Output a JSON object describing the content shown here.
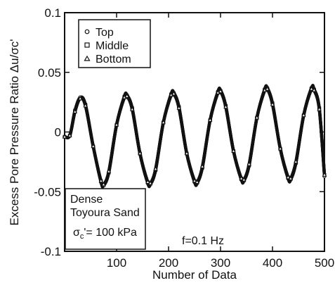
{
  "chart_data": {
    "type": "scatter",
    "xlabel": "Number of Data",
    "ylabel": "Excess Pore Pressure Ratio Δu/σc'",
    "xlim": [
      0,
      500
    ],
    "ylim": [
      -0.1,
      0.1
    ],
    "xticks": [
      100,
      200,
      300,
      400,
      500
    ],
    "xtick_labels": [
      "100",
      "200",
      "300",
      "400",
      "500"
    ],
    "yticks": [
      -0.1,
      -0.05,
      0,
      0.05,
      0.1
    ],
    "ytick_labels": [
      "-0.1",
      "-0.05",
      "0",
      "0.05",
      "0.1"
    ],
    "grid": false,
    "legend_placement": "top-left",
    "series": [
      {
        "name": "Top",
        "marker": "circle",
        "x": [
          0,
          10,
          20,
          30,
          40,
          55,
          70,
          75,
          85,
          100,
          115,
          120,
          130,
          145,
          160,
          165,
          175,
          190,
          205,
          210,
          220,
          235,
          250,
          255,
          265,
          280,
          295,
          300,
          310,
          325,
          340,
          345,
          355,
          370,
          385,
          390,
          400,
          415,
          430,
          435,
          445,
          460,
          475,
          480,
          490,
          500
        ],
        "y": [
          -0.004,
          -0.003,
          0.018,
          0.029,
          0.023,
          -0.012,
          -0.042,
          -0.045,
          -0.034,
          0.006,
          0.03,
          0.031,
          0.02,
          -0.018,
          -0.043,
          -0.044,
          -0.032,
          0.008,
          0.032,
          0.033,
          0.021,
          -0.018,
          -0.042,
          -0.043,
          -0.03,
          0.01,
          0.034,
          0.035,
          0.022,
          -0.016,
          -0.04,
          -0.041,
          -0.028,
          0.012,
          0.036,
          0.037,
          0.024,
          -0.014,
          -0.039,
          -0.04,
          -0.026,
          0.014,
          0.037,
          0.036,
          0.02,
          -0.037
        ]
      },
      {
        "name": "Middle",
        "marker": "square",
        "x": [
          0,
          10,
          20,
          30,
          40,
          55,
          70,
          75,
          85,
          100,
          115,
          120,
          130,
          145,
          160,
          165,
          175,
          190,
          205,
          210,
          220,
          235,
          250,
          255,
          265,
          280,
          295,
          300,
          310,
          325,
          340,
          345,
          355,
          370,
          385,
          390,
          400,
          415,
          430,
          435,
          445,
          460,
          475,
          480,
          490,
          500
        ],
        "y": [
          -0.004,
          -0.003,
          0.018,
          0.028,
          0.023,
          -0.012,
          -0.041,
          -0.044,
          -0.034,
          0.006,
          0.029,
          0.03,
          0.02,
          -0.018,
          -0.042,
          -0.043,
          -0.032,
          0.008,
          0.031,
          0.032,
          0.021,
          -0.018,
          -0.041,
          -0.042,
          -0.03,
          0.01,
          0.033,
          0.034,
          0.022,
          -0.016,
          -0.039,
          -0.04,
          -0.028,
          0.012,
          0.035,
          0.036,
          0.024,
          -0.014,
          -0.038,
          -0.039,
          -0.026,
          0.014,
          0.036,
          0.035,
          0.02,
          -0.036
        ]
      },
      {
        "name": "Bottom",
        "marker": "triangle",
        "x": [
          0,
          10,
          20,
          30,
          40,
          55,
          70,
          75,
          85,
          100,
          115,
          120,
          130,
          145,
          160,
          165,
          175,
          190,
          205,
          210,
          220,
          235,
          250,
          255,
          265,
          280,
          295,
          300,
          310,
          325,
          340,
          345,
          355,
          370,
          385,
          390,
          400,
          415,
          430,
          435,
          445,
          460,
          475,
          480,
          490,
          500
        ],
        "y": [
          -0.004,
          -0.003,
          0.017,
          0.028,
          0.022,
          -0.012,
          -0.041,
          -0.044,
          -0.033,
          0.006,
          0.029,
          0.03,
          0.019,
          -0.018,
          -0.042,
          -0.043,
          -0.031,
          0.008,
          0.031,
          0.032,
          0.02,
          -0.018,
          -0.041,
          -0.042,
          -0.029,
          0.01,
          0.033,
          0.034,
          0.021,
          -0.016,
          -0.039,
          -0.04,
          -0.027,
          0.012,
          0.035,
          0.036,
          0.023,
          -0.014,
          -0.038,
          -0.039,
          -0.025,
          0.014,
          0.036,
          0.035,
          0.019,
          -0.036
        ]
      }
    ],
    "annotations": {
      "material_line1": "Dense",
      "material_line2": "Toyoura Sand",
      "stress_symbol": "σ",
      "stress_subscript": "c",
      "stress_value": "'= 100 kPa",
      "frequency": "f=0.1 Hz"
    }
  }
}
